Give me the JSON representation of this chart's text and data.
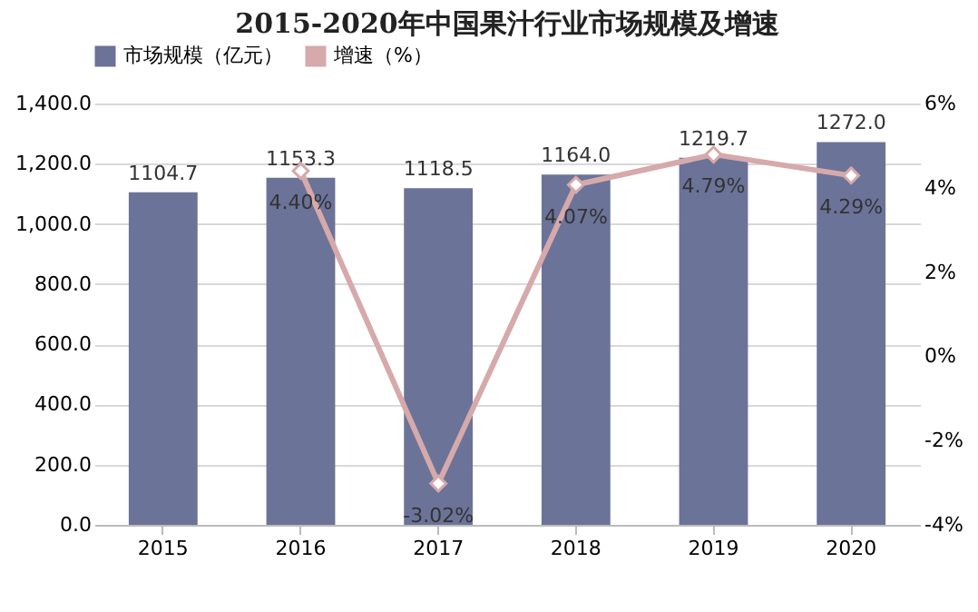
{
  "chart_data": {
    "type": "bar",
    "title": "2015-2020年中国果汁行业市场规模及增速",
    "categories": [
      "2015",
      "2016",
      "2017",
      "2018",
      "2019",
      "2020"
    ],
    "series": [
      {
        "name": "市场规模（亿元）",
        "color": "#6b7399",
        "values": [
          1104.7,
          1153.3,
          1118.5,
          1164.0,
          1219.7,
          1272.0
        ],
        "value_labels": [
          "1104.7",
          "1153.3",
          "1118.5",
          "1164.0",
          "1219.7",
          "1272.0"
        ]
      },
      {
        "name": "增速（%）",
        "type": "line",
        "axis": "y2",
        "color": "#d6a9aa",
        "values": [
          null,
          4.4,
          -3.02,
          4.07,
          4.79,
          4.29
        ],
        "value_labels": [
          null,
          "4.40%",
          "-3.02%",
          "4.07%",
          "4.79%",
          "4.29%"
        ]
      }
    ],
    "ylim": [
      0,
      1400
    ],
    "yticks": [
      {
        "value": 0,
        "label": "0.0"
      },
      {
        "value": 200,
        "label": "200.0"
      },
      {
        "value": 400,
        "label": "400.0"
      },
      {
        "value": 600,
        "label": "600.0"
      },
      {
        "value": 800,
        "label": "800.0"
      },
      {
        "value": 1000,
        "label": "1,000.0"
      },
      {
        "value": 1200,
        "label": "1,200.0"
      },
      {
        "value": 1400,
        "label": "1,400.0"
      }
    ],
    "y2lim": [
      -4,
      6
    ],
    "y2ticks": [
      {
        "value": -4,
        "label": "-4%"
      },
      {
        "value": -2,
        "label": "-2%"
      },
      {
        "value": 0,
        "label": "0%"
      },
      {
        "value": 2,
        "label": "2%"
      },
      {
        "value": 4,
        "label": "4%"
      },
      {
        "value": 6,
        "label": "6%"
      }
    ],
    "grid": "y",
    "legend": "top",
    "marker": "diamond"
  }
}
